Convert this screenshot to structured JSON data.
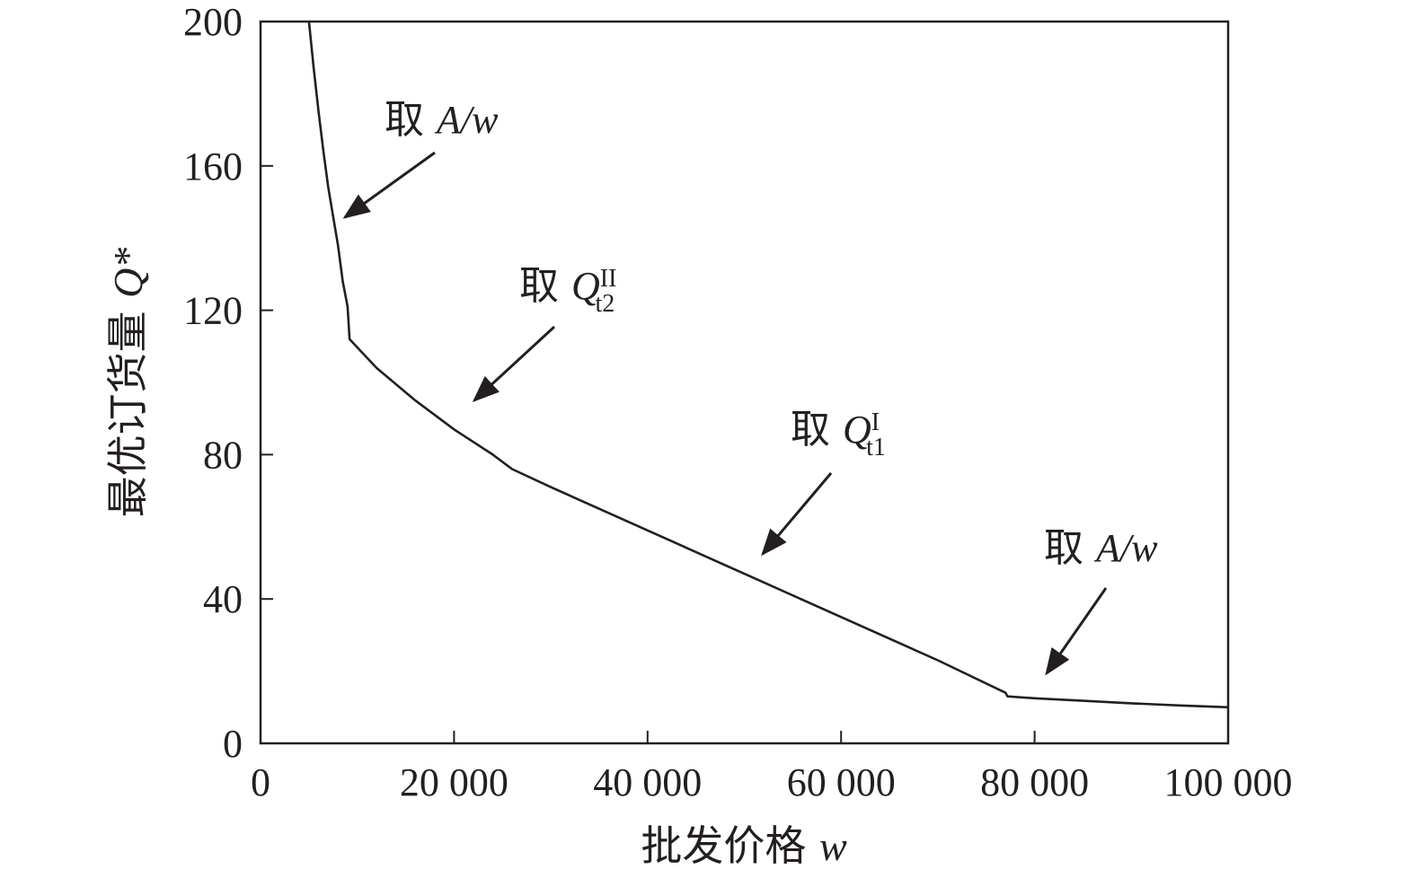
{
  "chart_data": {
    "type": "line",
    "xlabel": "批发价格",
    "xlabel_var": "w",
    "ylabel": "最优订货量",
    "ylabel_var": "Q*",
    "xlim": [
      0,
      100000
    ],
    "ylim": [
      0,
      200
    ],
    "x_ticks": [
      0,
      20000,
      40000,
      60000,
      80000,
      100000
    ],
    "x_tick_labels": [
      "0",
      "20 000",
      "40 000",
      "60 000",
      "80 000",
      "100 000"
    ],
    "y_ticks": [
      0,
      40,
      80,
      120,
      160,
      200
    ],
    "y_tick_labels": [
      "0",
      "40",
      "80",
      "120",
      "160",
      "200"
    ],
    "grid": false,
    "legend": "none",
    "line_color": "#231f20",
    "series": [
      {
        "points": [
          [
            5000,
            200
          ],
          [
            5500,
            187
          ],
          [
            6000,
            175
          ],
          [
            6500,
            164
          ],
          [
            7000,
            154
          ],
          [
            7500,
            146
          ],
          [
            8000,
            138
          ],
          [
            8500,
            128
          ],
          [
            9000,
            121
          ],
          [
            9200,
            112
          ],
          [
            12000,
            104
          ],
          [
            16000,
            95
          ],
          [
            20000,
            87
          ],
          [
            24000,
            80
          ],
          [
            26000,
            76
          ],
          [
            30000,
            71
          ],
          [
            40000,
            59
          ],
          [
            50000,
            47
          ],
          [
            60000,
            35
          ],
          [
            70000,
            23
          ],
          [
            77000,
            14
          ],
          [
            77200,
            13
          ],
          [
            80000,
            12.5
          ],
          [
            85000,
            11.8
          ],
          [
            90000,
            11.1
          ],
          [
            95000,
            10.5
          ],
          [
            100000,
            10
          ]
        ]
      }
    ],
    "annotations": [
      {
        "prefix": "取",
        "label": "A/w",
        "sup": "",
        "sub": ""
      },
      {
        "prefix": "取",
        "label": "Q",
        "sup": "II",
        "sub": "t2"
      },
      {
        "prefix": "取",
        "label": "Q",
        "sup": "I",
        "sub": "t1"
      },
      {
        "prefix": "取",
        "label": "A/w",
        "sup": "",
        "sub": ""
      }
    ]
  }
}
